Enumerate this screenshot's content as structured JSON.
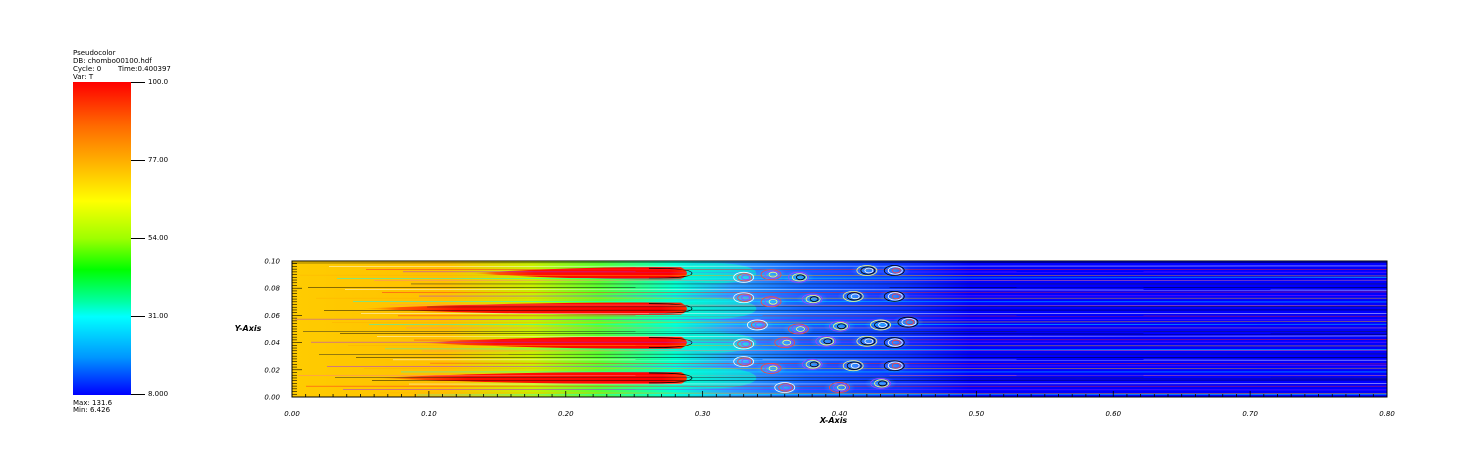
{
  "legend": {
    "title": "Pseudocolor",
    "db": "DB: chombo00100.hdf",
    "cycle": "Cycle: 0",
    "time": "Time:0.400397",
    "var": "Var: T",
    "max": "Max: 131.6",
    "min": "Min: 6.426",
    "ticks": [
      "100.0",
      "77.00",
      "54.00",
      "31.00",
      "8.000"
    ]
  },
  "chart_data": {
    "type": "heatmap",
    "title": "",
    "xlabel": "X-Axis",
    "ylabel": "Y-Axis",
    "xlim": [
      0.0,
      0.8
    ],
    "ylim": [
      0.0,
      0.1
    ],
    "x_ticks": [
      "0.00",
      "0.10",
      "0.20",
      "0.30",
      "0.40",
      "0.50",
      "0.60",
      "0.70",
      "0.80"
    ],
    "y_ticks": [
      "0.00",
      "0.02",
      "0.04",
      "0.06",
      "0.08",
      "0.10"
    ],
    "colorbar": {
      "min": 8.0,
      "max": 100.0,
      "ticks": [
        100.0,
        77.0,
        54.0,
        31.0,
        8.0
      ]
    },
    "hot_streaks": [
      {
        "y": 0.091,
        "x_start": 0.13,
        "x_end": 0.29
      },
      {
        "y": 0.065,
        "x_start": 0.05,
        "x_end": 0.29
      },
      {
        "y": 0.04,
        "x_start": 0.09,
        "x_end": 0.29
      },
      {
        "y": 0.014,
        "x_start": 0.06,
        "x_end": 0.29
      }
    ]
  }
}
